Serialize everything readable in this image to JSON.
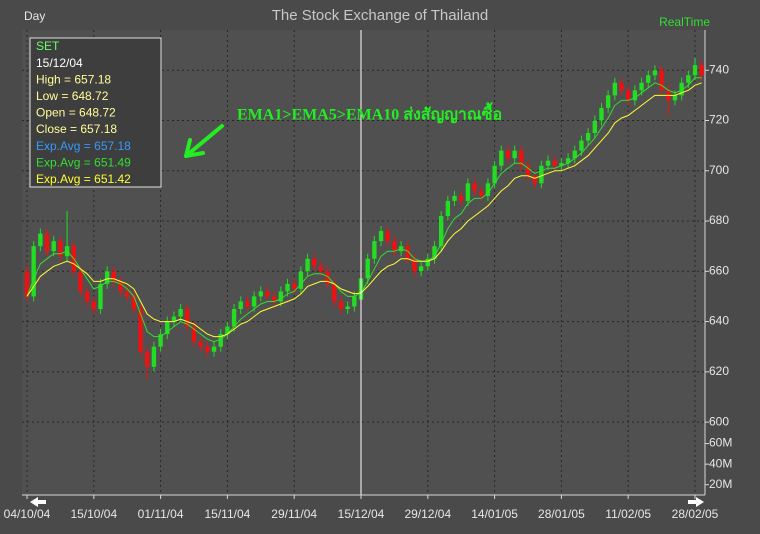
{
  "chart_data": {
    "type": "candlestick",
    "title": "The Stock Exchange of Thailand",
    "period_label": "Day",
    "status": "RealTime",
    "annotation": "EMA1>EMA5>EMA10 ส่งสัญญาณซื้อ",
    "info_box": [
      {
        "text": "SET",
        "color": "#66ff66"
      },
      {
        "text": "15/12/04",
        "color": "#ffffff"
      },
      {
        "text": "High  = 657.18",
        "color": "#ffff99"
      },
      {
        "text": "Low  = 648.72",
        "color": "#ffff99"
      },
      {
        "text": "Open = 648.72",
        "color": "#ffff99"
      },
      {
        "text": "Close = 657.18",
        "color": "#ffff99"
      },
      {
        "text": "Exp.Avg = 657.18",
        "color": "#3399ff"
      },
      {
        "text": "Exp.Avg = 651.49",
        "color": "#33dd33"
      },
      {
        "text": "Exp.Avg = 651.42",
        "color": "#ffff33"
      }
    ],
    "categories": [
      "04/10/04",
      null,
      null,
      null,
      null,
      null,
      null,
      null,
      null,
      null,
      "15/10/04",
      null,
      null,
      null,
      null,
      null,
      null,
      null,
      null,
      null,
      "01/11/04",
      null,
      null,
      null,
      null,
      null,
      null,
      null,
      null,
      null,
      "15/11/04",
      null,
      null,
      null,
      null,
      null,
      null,
      null,
      null,
      null,
      "29/11/04",
      null,
      null,
      null,
      null,
      null,
      null,
      null,
      null,
      null,
      "15/12/04",
      null,
      null,
      null,
      null,
      null,
      null,
      null,
      null,
      null,
      "29/12/04",
      null,
      null,
      null,
      null,
      null,
      null,
      null,
      null,
      null,
      "14/01/05",
      null,
      null,
      null,
      null,
      null,
      null,
      null,
      null,
      null,
      "28/01/05",
      null,
      null,
      null,
      null,
      null,
      null,
      null,
      null,
      null,
      "11/02/05",
      null,
      null,
      null,
      null,
      null,
      null,
      null,
      null,
      null,
      "28/02/05",
      null
    ],
    "open": [
      660,
      650,
      670,
      675,
      668,
      672,
      666,
      670,
      660,
      652,
      648,
      645,
      655,
      660,
      656,
      652,
      650,
      645,
      628,
      622,
      630,
      635,
      640,
      642,
      645,
      638,
      632,
      630,
      628,
      630,
      635,
      638,
      645,
      648,
      646,
      650,
      652,
      650,
      648,
      652,
      655,
      653,
      660,
      665,
      662,
      660,
      655,
      648,
      645,
      646,
      648.72,
      657.18,
      665,
      672,
      676,
      672,
      668,
      670,
      665,
      660,
      662,
      665,
      670,
      682,
      688,
      690,
      688,
      695,
      692,
      690,
      695,
      702,
      708,
      705,
      708,
      702,
      698,
      695,
      702,
      704,
      702,
      703,
      705,
      708,
      712,
      715,
      720,
      725,
      730,
      735,
      732,
      728,
      732,
      735,
      738,
      740,
      732,
      728,
      730,
      735,
      738,
      742
    ],
    "high": [
      662,
      672,
      677,
      677,
      674,
      674,
      684,
      672,
      662,
      654,
      650,
      657,
      662,
      662,
      658,
      654,
      652,
      647,
      630,
      632,
      637,
      642,
      644,
      647,
      647,
      640,
      634,
      632,
      632,
      637,
      640,
      647,
      650,
      650,
      652,
      654,
      654,
      652,
      654,
      657,
      657,
      662,
      667,
      667,
      664,
      662,
      657,
      650,
      648,
      652,
      657.18,
      667,
      674,
      678,
      678,
      674,
      672,
      672,
      667,
      664,
      667,
      672,
      684,
      690,
      692,
      692,
      697,
      697,
      694,
      697,
      704,
      710,
      710,
      710,
      710,
      704,
      700,
      704,
      706,
      706,
      705,
      707,
      710,
      714,
      717,
      722,
      727,
      732,
      737,
      737,
      734,
      734,
      737,
      740,
      742,
      742,
      734,
      732,
      737,
      740,
      745,
      744
    ],
    "low": [
      648,
      648,
      668,
      666,
      666,
      664,
      664,
      658,
      650,
      646,
      643,
      643,
      653,
      654,
      650,
      648,
      643,
      626,
      617,
      620,
      628,
      633,
      638,
      640,
      636,
      630,
      628,
      626,
      626,
      628,
      633,
      636,
      643,
      644,
      644,
      648,
      648,
      646,
      646,
      650,
      651,
      651,
      658,
      660,
      658,
      653,
      646,
      643,
      643,
      644,
      648.72,
      655,
      663,
      670,
      670,
      666,
      666,
      663,
      658,
      658,
      660,
      663,
      668,
      680,
      686,
      686,
      686,
      690,
      688,
      688,
      693,
      700,
      703,
      703,
      700,
      696,
      693,
      693,
      700,
      700,
      700,
      701,
      703,
      706,
      710,
      713,
      718,
      723,
      728,
      730,
      726,
      726,
      730,
      733,
      736,
      730,
      722,
      726,
      728,
      733,
      736,
      736
    ],
    "close": [
      650,
      670,
      675,
      668,
      672,
      666,
      670,
      660,
      652,
      648,
      645,
      655,
      660,
      656,
      652,
      650,
      645,
      628,
      622,
      630,
      635,
      640,
      642,
      645,
      638,
      632,
      630,
      628,
      630,
      635,
      638,
      645,
      648,
      646,
      650,
      652,
      650,
      648,
      652,
      655,
      653,
      660,
      665,
      662,
      660,
      655,
      648,
      645,
      646,
      650,
      657.18,
      665,
      672,
      676,
      672,
      668,
      670,
      665,
      660,
      662,
      665,
      670,
      682,
      688,
      690,
      688,
      695,
      692,
      690,
      695,
      702,
      708,
      705,
      708,
      702,
      698,
      695,
      702,
      704,
      702,
      703,
      705,
      708,
      712,
      715,
      720,
      725,
      730,
      735,
      732,
      728,
      732,
      735,
      738,
      740,
      732,
      728,
      730,
      735,
      738,
      742,
      738
    ],
    "up_color": "#22dd22",
    "down_color": "#ee1111",
    "lines": [
      {
        "color": "#33dd33",
        "values": [
          650,
          657,
          663,
          665,
          667,
          667,
          668,
          665,
          661,
          657,
          653,
          654,
          656,
          656,
          655,
          653,
          650,
          643,
          636,
          634,
          634,
          636,
          638,
          640,
          639,
          637,
          635,
          633,
          632,
          633,
          635,
          638,
          641,
          643,
          645,
          647,
          648,
          648,
          649,
          651,
          652,
          655,
          658,
          659,
          659,
          658,
          655,
          652,
          650,
          650,
          651.49,
          656,
          661,
          666,
          668,
          668,
          669,
          668,
          665,
          664,
          664,
          666,
          671,
          677,
          681,
          683,
          687,
          689,
          689,
          691,
          695,
          699,
          701,
          703,
          703,
          701,
          699,
          700,
          701,
          701,
          702,
          703,
          705,
          707,
          710,
          713,
          717,
          721,
          726,
          728,
          728,
          729,
          731,
          733,
          735,
          734,
          732,
          731,
          732,
          734,
          737,
          737
        ]
      },
      {
        "color": "#ffff33",
        "values": [
          650,
          654,
          658,
          660,
          662,
          663,
          664,
          663,
          661,
          659,
          656,
          656,
          657,
          657,
          656,
          655,
          653,
          648,
          643,
          641,
          640,
          640,
          640,
          641,
          640,
          639,
          637,
          635,
          634,
          634,
          635,
          637,
          639,
          640,
          642,
          644,
          645,
          646,
          647,
          648,
          649,
          651,
          654,
          655,
          656,
          656,
          655,
          653,
          652,
          651,
          651.42,
          654,
          657,
          660,
          662,
          663,
          665,
          665,
          664,
          664,
          664,
          665,
          668,
          672,
          675,
          677,
          680,
          682,
          684,
          686,
          689,
          692,
          694,
          697,
          698,
          698,
          697,
          698,
          699,
          700,
          700,
          701,
          702,
          704,
          706,
          709,
          712,
          715,
          719,
          721,
          722,
          724,
          726,
          728,
          730,
          730,
          730,
          730,
          731,
          732,
          734,
          735
        ]
      }
    ],
    "ylim": [
      571,
      756
    ],
    "yticks": [
      600,
      620,
      640,
      660,
      680,
      700,
      720,
      740
    ],
    "y2lim": [
      10000000,
      80000000
    ],
    "y2ticks": [
      {
        "value": 20000000,
        "label": "20M"
      },
      {
        "value": 40000000,
        "label": "40M"
      },
      {
        "value": 60000000,
        "label": "60M"
      }
    ],
    "grid": true
  }
}
